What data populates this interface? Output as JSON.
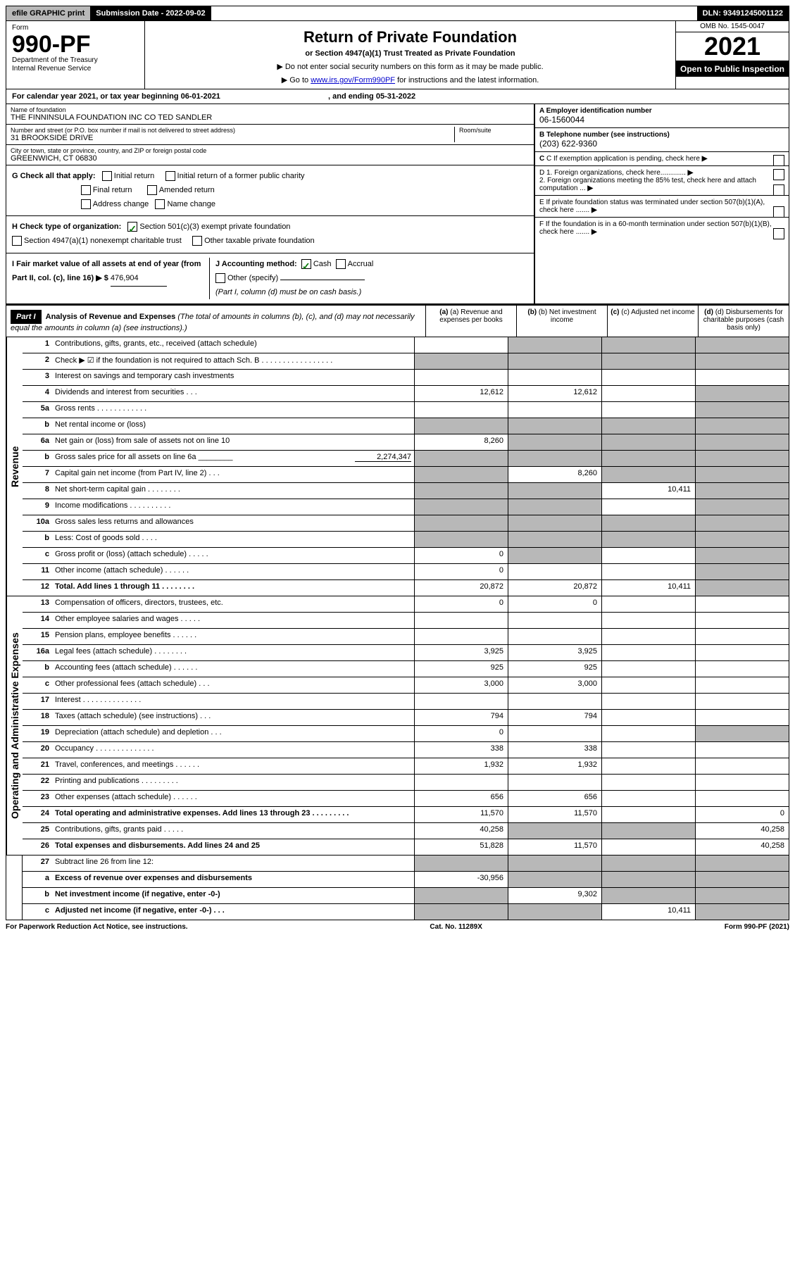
{
  "topbar": {
    "efile": "efile GRAPHIC print",
    "subdate_label": "Submission Date - 2022-09-02",
    "dln": "DLN: 93491245001122"
  },
  "header": {
    "form_word": "Form",
    "form_no": "990-PF",
    "dept": "Department of the Treasury",
    "irs": "Internal Revenue Service",
    "title": "Return of Private Foundation",
    "subtitle": "or Section 4947(a)(1) Trust Treated as Private Foundation",
    "inst1": "▶ Do not enter social security numbers on this form as it may be made public.",
    "inst2_pre": "▶ Go to ",
    "inst2_link": "www.irs.gov/Form990PF",
    "inst2_post": " for instructions and the latest information.",
    "omb": "OMB No. 1545-0047",
    "year": "2021",
    "open": "Open to Public Inspection"
  },
  "calendar": {
    "pre": "For calendar year 2021, or tax year beginning ",
    "begin": "06-01-2021",
    "mid": " , and ending ",
    "end": "05-31-2022"
  },
  "info": {
    "name_label": "Name of foundation",
    "name": "THE FINNINSULA FOUNDATION INC CO TED SANDLER",
    "addr_label": "Number and street (or P.O. box number if mail is not delivered to street address)",
    "addr": "31 BROOKSIDE DRIVE",
    "room_label": "Room/suite",
    "city_label": "City or town, state or province, country, and ZIP or foreign postal code",
    "city": "GREENWICH, CT  06830",
    "ein_label": "A Employer identification number",
    "ein": "06-1560044",
    "phone_label": "B Telephone number (see instructions)",
    "phone": "(203) 622-9360",
    "c_label": "C If exemption application is pending, check here",
    "d1": "D 1. Foreign organizations, check here.............",
    "d2": "2. Foreign organizations meeting the 85% test, check here and attach computation ...",
    "e": "E If private foundation status was terminated under section 507(b)(1)(A), check here .......",
    "f": "F If the foundation is in a 60-month termination under section 507(b)(1)(B), check here .......",
    "g_label": "G Check all that apply:",
    "g_initial": "Initial return",
    "g_initial_former": "Initial return of a former public charity",
    "g_final": "Final return",
    "g_amended": "Amended return",
    "g_addr": "Address change",
    "g_name": "Name change",
    "h_label": "H Check type of organization:",
    "h_501c3": "Section 501(c)(3) exempt private foundation",
    "h_4947": "Section 4947(a)(1) nonexempt charitable trust",
    "h_other": "Other taxable private foundation",
    "i_label": "I Fair market value of all assets at end of year (from Part II, col. (c), line 16) ▶ $",
    "i_val": "476,904",
    "j_label": "J Accounting method:",
    "j_cash": "Cash",
    "j_accrual": "Accrual",
    "j_other": "Other (specify)",
    "j_note": "(Part I, column (d) must be on cash basis.)"
  },
  "part1": {
    "label": "Part I",
    "title": "Analysis of Revenue and Expenses",
    "note": " (The total of amounts in columns (b), (c), and (d) may not necessarily equal the amounts in column (a) (see instructions).)",
    "col_a": "(a) Revenue and expenses per books",
    "col_b": "(b) Net investment income",
    "col_c": "(c) Adjusted net income",
    "col_d": "(d) Disbursements for charitable purposes (cash basis only)"
  },
  "side": {
    "revenue": "Revenue",
    "expenses": "Operating and Administrative Expenses"
  },
  "lines": [
    {
      "n": "1",
      "t": "Contributions, gifts, grants, etc., received (attach schedule)",
      "a": "",
      "b": "",
      "c": "",
      "d": "",
      "sa": false,
      "sb": true,
      "sc": true,
      "sd": true
    },
    {
      "n": "2",
      "t": "Check ▶ ☑ if the foundation is not required to attach Sch. B     .  .  .  .  .  .  .  .  .  .  .  .  .  .  .  .  .",
      "a": "",
      "b": "",
      "c": "",
      "d": "",
      "sa": true,
      "sb": true,
      "sc": true,
      "sd": true
    },
    {
      "n": "3",
      "t": "Interest on savings and temporary cash investments",
      "a": "",
      "b": "",
      "c": "",
      "d": ""
    },
    {
      "n": "4",
      "t": "Dividends and interest from securities   .  .  .",
      "a": "12,612",
      "b": "12,612",
      "c": "",
      "d": "",
      "sd": true
    },
    {
      "n": "5a",
      "t": "Gross rents   .  .  .  .  .  .  .  .  .  .  .  .",
      "a": "",
      "b": "",
      "c": "",
      "d": "",
      "sd": true
    },
    {
      "n": "b",
      "t": "Net rental income or (loss)",
      "a": "",
      "b": "",
      "c": "",
      "d": "",
      "sa": true,
      "sb": true,
      "sc": true,
      "sd": true
    },
    {
      "n": "6a",
      "t": "Net gain or (loss) from sale of assets not on line 10",
      "a": "8,260",
      "b": "",
      "c": "",
      "d": "",
      "sb": true,
      "sc": true,
      "sd": true
    },
    {
      "n": "b",
      "t": "Gross sales price for all assets on line 6a ________",
      "inline": "2,274,347",
      "a": "",
      "b": "",
      "c": "",
      "d": "",
      "sa": true,
      "sb": true,
      "sc": true,
      "sd": true
    },
    {
      "n": "7",
      "t": "Capital gain net income (from Part IV, line 2)   .  .  .",
      "a": "",
      "b": "8,260",
      "c": "",
      "d": "",
      "sa": true,
      "sc": true,
      "sd": true
    },
    {
      "n": "8",
      "t": "Net short-term capital gain  .  .  .  .  .  .  .  .",
      "a": "",
      "b": "",
      "c": "10,411",
      "d": "",
      "sa": true,
      "sb": true,
      "sd": true
    },
    {
      "n": "9",
      "t": "Income modifications  .  .  .  .  .  .  .  .  .  .",
      "a": "",
      "b": "",
      "c": "",
      "d": "",
      "sa": true,
      "sb": true,
      "sd": true
    },
    {
      "n": "10a",
      "t": "Gross sales less returns and allowances",
      "a": "",
      "b": "",
      "c": "",
      "d": "",
      "sa": true,
      "sb": true,
      "sc": true,
      "sd": true
    },
    {
      "n": "b",
      "t": "Less: Cost of goods sold   .  .  .  .",
      "a": "",
      "b": "",
      "c": "",
      "d": "",
      "sa": true,
      "sb": true,
      "sc": true,
      "sd": true
    },
    {
      "n": "c",
      "t": "Gross profit or (loss) (attach schedule)   .  .  .  .  .",
      "a": "0",
      "b": "",
      "c": "",
      "d": "",
      "sb": true,
      "sd": true
    },
    {
      "n": "11",
      "t": "Other income (attach schedule)   .  .  .  .  .  .",
      "a": "0",
      "b": "",
      "c": "",
      "d": "",
      "sd": true
    },
    {
      "n": "12",
      "t": "Total. Add lines 1 through 11   .  .  .  .  .  .  .  .",
      "bold": true,
      "a": "20,872",
      "b": "20,872",
      "c": "10,411",
      "d": "",
      "sd": true
    }
  ],
  "exp_lines": [
    {
      "n": "13",
      "t": "Compensation of officers, directors, trustees, etc.",
      "a": "0",
      "b": "0",
      "c": "",
      "d": ""
    },
    {
      "n": "14",
      "t": "Other employee salaries and wages   .  .  .  .  .",
      "a": "",
      "b": "",
      "c": "",
      "d": ""
    },
    {
      "n": "15",
      "t": "Pension plans, employee benefits  .  .  .  .  .  .",
      "a": "",
      "b": "",
      "c": "",
      "d": ""
    },
    {
      "n": "16a",
      "t": "Legal fees (attach schedule)  .  .  .  .  .  .  .  .",
      "a": "3,925",
      "b": "3,925",
      "c": "",
      "d": ""
    },
    {
      "n": "b",
      "t": "Accounting fees (attach schedule)  .  .  .  .  .  .",
      "a": "925",
      "b": "925",
      "c": "",
      "d": ""
    },
    {
      "n": "c",
      "t": "Other professional fees (attach schedule)   .  .  .",
      "a": "3,000",
      "b": "3,000",
      "c": "",
      "d": ""
    },
    {
      "n": "17",
      "t": "Interest  .  .  .  .  .  .  .  .  .  .  .  .  .  .",
      "a": "",
      "b": "",
      "c": "",
      "d": ""
    },
    {
      "n": "18",
      "t": "Taxes (attach schedule) (see instructions)   .  .  .",
      "a": "794",
      "b": "794",
      "c": "",
      "d": ""
    },
    {
      "n": "19",
      "t": "Depreciation (attach schedule) and depletion   .  .  .",
      "a": "0",
      "b": "",
      "c": "",
      "d": "",
      "sd": true
    },
    {
      "n": "20",
      "t": "Occupancy  .  .  .  .  .  .  .  .  .  .  .  .  .  .",
      "a": "338",
      "b": "338",
      "c": "",
      "d": ""
    },
    {
      "n": "21",
      "t": "Travel, conferences, and meetings  .  .  .  .  .  .",
      "a": "1,932",
      "b": "1,932",
      "c": "",
      "d": ""
    },
    {
      "n": "22",
      "t": "Printing and publications  .  .  .  .  .  .  .  .  .",
      "a": "",
      "b": "",
      "c": "",
      "d": ""
    },
    {
      "n": "23",
      "t": "Other expenses (attach schedule)  .  .  .  .  .  .",
      "a": "656",
      "b": "656",
      "c": "",
      "d": ""
    },
    {
      "n": "24",
      "t": "Total operating and administrative expenses. Add lines 13 through 23   .  .  .  .  .  .  .  .  .",
      "bold": true,
      "a": "11,570",
      "b": "11,570",
      "c": "",
      "d": "0"
    },
    {
      "n": "25",
      "t": "Contributions, gifts, grants paid   .  .  .  .  .",
      "a": "40,258",
      "b": "",
      "c": "",
      "d": "40,258",
      "sb": true,
      "sc": true
    },
    {
      "n": "26",
      "t": "Total expenses and disbursements. Add lines 24 and 25",
      "bold": true,
      "a": "51,828",
      "b": "11,570",
      "c": "",
      "d": "40,258"
    }
  ],
  "bottom_lines": [
    {
      "n": "27",
      "t": "Subtract line 26 from line 12:",
      "a": "",
      "b": "",
      "c": "",
      "d": "",
      "sa": true,
      "sb": true,
      "sc": true,
      "sd": true
    },
    {
      "n": "a",
      "t": "Excess of revenue over expenses and disbursements",
      "bold": true,
      "a": "-30,956",
      "b": "",
      "c": "",
      "d": "",
      "sb": true,
      "sc": true,
      "sd": true
    },
    {
      "n": "b",
      "t": "Net investment income (if negative, enter -0-)",
      "bold": true,
      "a": "",
      "b": "9,302",
      "c": "",
      "d": "",
      "sa": true,
      "sc": true,
      "sd": true
    },
    {
      "n": "c",
      "t": "Adjusted net income (if negative, enter -0-)   .  .  .",
      "bold": true,
      "a": "",
      "b": "",
      "c": "10,411",
      "d": "",
      "sa": true,
      "sb": true,
      "sd": true
    }
  ],
  "footer": {
    "left": "For Paperwork Reduction Act Notice, see instructions.",
    "center": "Cat. No. 11289X",
    "right": "Form 990-PF (2021)"
  }
}
